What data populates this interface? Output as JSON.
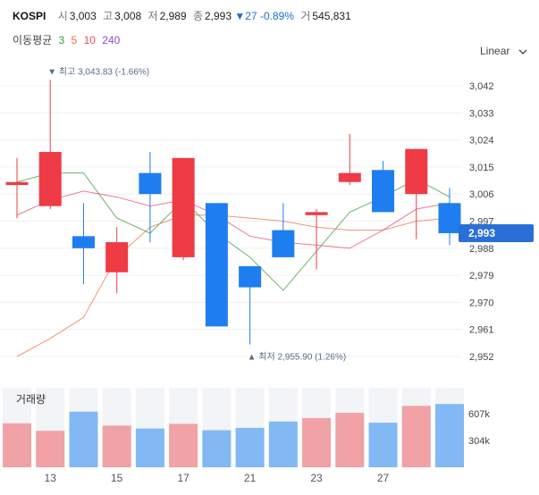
{
  "header": {
    "symbol": "KOSPI",
    "open_label": "시",
    "open": "3,003",
    "high_label": "고",
    "high": "3,008",
    "low_label": "저",
    "low": "2,989",
    "close_label": "종",
    "close": "2,993",
    "change_arrow": "▼",
    "change": "27",
    "change_pct": "-0.89%",
    "volume_label": "거",
    "volume": "545,831"
  },
  "moving_average": {
    "label": "이동평균",
    "periods": [
      {
        "text": "3",
        "color": "#3a9a3a"
      },
      {
        "text": "5",
        "color": "#e8734a"
      },
      {
        "text": "10",
        "color": "#e84a6a"
      },
      {
        "text": "240",
        "color": "#8a4ad8"
      }
    ]
  },
  "scale_button": {
    "label": "Linear",
    "icon": "chevron-down-icon"
  },
  "volume_panel": {
    "label": "거래량",
    "ticks": [
      "607k",
      "304k"
    ]
  },
  "annotations": {
    "high": {
      "marker": "▼",
      "text": "최고 3,043.83 (-1.66%)"
    },
    "low": {
      "marker": "▲",
      "text": "최저 2,955.90 (1.26%)"
    }
  },
  "price_tag": "2,993",
  "colors": {
    "up": "#ee3b45",
    "down": "#1e7ef0",
    "up_volume": "#f0a2a6",
    "down_volume": "#82b8f4"
  },
  "chart_data": {
    "type": "candlestick",
    "x_tick_labels": [
      "13",
      "15",
      "17",
      "21",
      "23",
      "27"
    ],
    "y_ticks": [
      "3,042",
      "3,033",
      "3,024",
      "3,015",
      "3,006",
      "2,997",
      "2,988",
      "2,979",
      "2,970",
      "2,961",
      "2,952"
    ],
    "ylim": [
      2948,
      3058
    ],
    "candles": [
      {
        "open": 3009,
        "high": 3018,
        "low": 2998,
        "close": 3010,
        "volume": 380000
      },
      {
        "open": 3002,
        "high": 3044,
        "low": 3001,
        "close": 3020,
        "volume": 315000
      },
      {
        "open": 2992,
        "high": 3003,
        "low": 2976,
        "close": 2988,
        "volume": 480000
      },
      {
        "open": 2980,
        "high": 2995,
        "low": 2973,
        "close": 2990,
        "volume": 360000
      },
      {
        "open": 3013,
        "high": 3020,
        "low": 2990,
        "close": 3006,
        "volume": 335000
      },
      {
        "open": 2985,
        "high": 3018,
        "low": 2984,
        "close": 3018,
        "volume": 375000
      },
      {
        "open": 3003,
        "high": 3003,
        "low": 2962,
        "close": 2962,
        "volume": 320000
      },
      {
        "open": 2982,
        "high": 2982,
        "low": 2956,
        "close": 2975,
        "volume": 340000
      },
      {
        "open": 2994,
        "high": 3003,
        "low": 2985,
        "close": 2985,
        "volume": 395000
      },
      {
        "open": 2999,
        "high": 3001,
        "low": 2981,
        "close": 3000,
        "volume": 425000
      },
      {
        "open": 3010,
        "high": 3026,
        "low": 3009,
        "close": 3013,
        "volume": 470000
      },
      {
        "open": 3014,
        "high": 3017,
        "low": 3000,
        "close": 3000,
        "volume": 385000
      },
      {
        "open": 3006,
        "high": 3021,
        "low": 2991,
        "close": 3021,
        "volume": 530000
      },
      {
        "open": 3003,
        "high": 3008,
        "low": 2989,
        "close": 2993,
        "volume": 545831
      }
    ],
    "ma_lines": [
      {
        "period": 3,
        "color": "#3a9a3a",
        "values": [
          3010,
          3013,
          3013,
          2998,
          2993,
          3004,
          2993,
          2985,
          2974,
          2987,
          3000,
          3005,
          3011,
          3005
        ]
      },
      {
        "period": 5,
        "color": "#e8734a",
        "values": [
          2952,
          2958,
          2965,
          2985,
          2995,
          2999,
          2999,
          2998,
          2997,
          2995,
          2994,
          2994,
          2997,
          2998
        ]
      },
      {
        "period": 10,
        "color": "#e84a6a",
        "values": [
          2999,
          3004,
          3007,
          3005,
          3002,
          3004,
          2999,
          2992,
          2990,
          2989,
          2988,
          2994,
          3001,
          3003
        ]
      }
    ]
  }
}
